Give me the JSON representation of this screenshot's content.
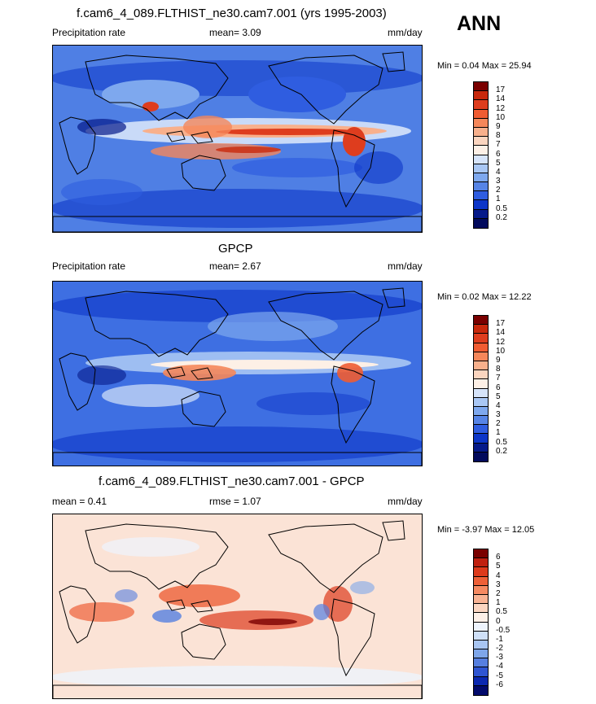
{
  "season": "ANN",
  "panels": [
    {
      "title": "f.cam6_4_089.FLTHIST_ne30.cam7.001 (yrs 1995-2003)",
      "left_label": "Precipitation rate",
      "center_label": "mean=   3.09",
      "right_label": "mm/day",
      "minmax": "Min =  0.04 Max =  25.94",
      "cb_labels": [
        "17",
        "14",
        "12",
        "10",
        "9",
        "8",
        "7",
        "6",
        "5",
        "4",
        "3",
        "2",
        "1",
        "0.5",
        "0.2"
      ],
      "cb_colors": [
        "#7a0000",
        "#c8280c",
        "#de3d1e",
        "#f05c32",
        "#f5875a",
        "#f8b08c",
        "#fbd5bf",
        "#fdf0e6",
        "#d6e4fa",
        "#a9c7f4",
        "#7ea8ee",
        "#5684e6",
        "#2f5de0",
        "#0d36c8",
        "#061a8a",
        "#020a5c"
      ],
      "map_style": "model"
    },
    {
      "title": "GPCP",
      "left_label": "Precipitation rate",
      "center_label": "mean=   2.67",
      "right_label": "mm/day",
      "minmax": "Min =  0.02 Max =  12.22",
      "cb_labels": [
        "17",
        "14",
        "12",
        "10",
        "9",
        "8",
        "7",
        "6",
        "5",
        "4",
        "3",
        "2",
        "1",
        "0.5",
        "0.2"
      ],
      "cb_colors": [
        "#7a0000",
        "#c8280c",
        "#de3d1e",
        "#f05c32",
        "#f5875a",
        "#f8b08c",
        "#fbd5bf",
        "#fdf0e6",
        "#d6e4fa",
        "#a9c7f4",
        "#7ea8ee",
        "#5684e6",
        "#2f5de0",
        "#0d36c8",
        "#061a8a",
        "#020a5c"
      ],
      "map_style": "obs"
    },
    {
      "title": "f.cam6_4_089.FLTHIST_ne30.cam7.001 - GPCP",
      "left_label": "mean =   0.41",
      "center_label": "rmse =   1.07",
      "right_label": "mm/day",
      "minmax": "Min =  -3.97 Max =  12.05",
      "cb_labels": [
        "6",
        "5",
        "4",
        "3",
        "2",
        "1",
        "0.5",
        "0",
        "-0.5",
        "-1",
        "-2",
        "-3",
        "-4",
        "-5",
        "-6"
      ],
      "cb_colors": [
        "#7a0000",
        "#c02010",
        "#dd3a1c",
        "#ee6038",
        "#f58a62",
        "#f8b394",
        "#fbd6c2",
        "#fdf0e8",
        "#eef4fd",
        "#cfe0f8",
        "#a8c5f2",
        "#7ea6ea",
        "#567fe0",
        "#2f55d2",
        "#0b28b0",
        "#020a6c"
      ],
      "map_style": "diff"
    }
  ]
}
